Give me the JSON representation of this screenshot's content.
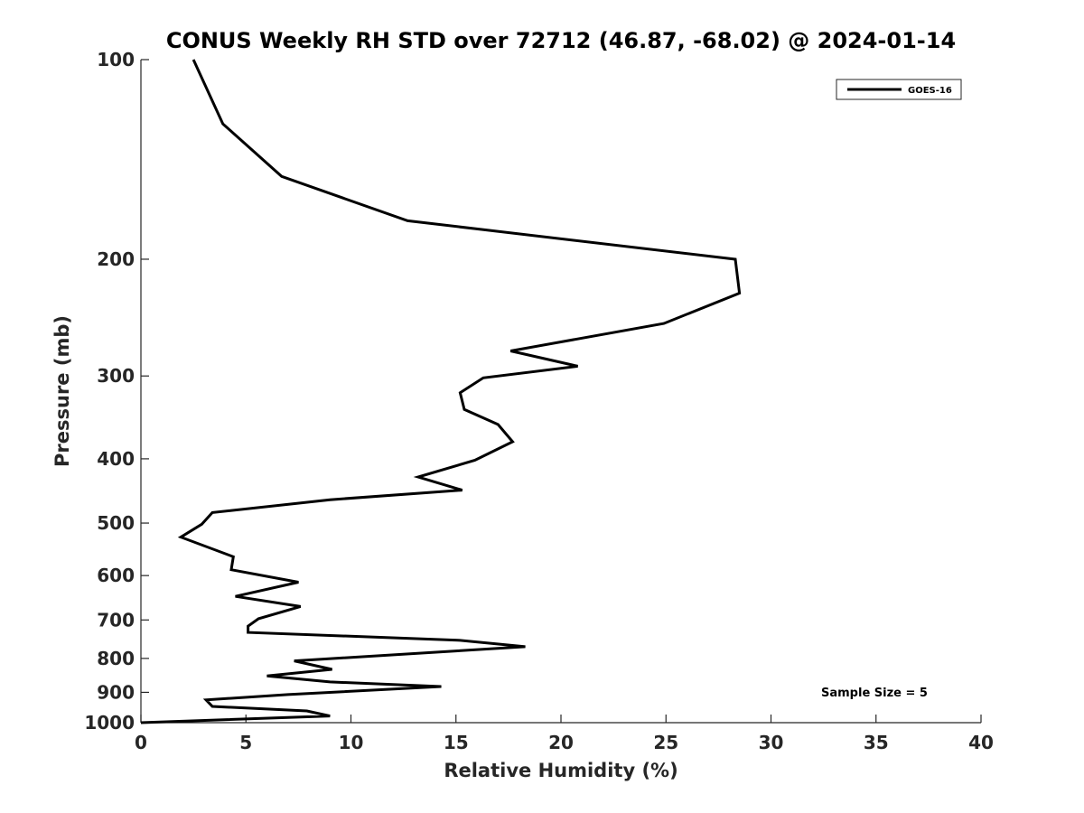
{
  "chart_data": {
    "type": "line",
    "title": "CONUS Weekly RH STD over 72712 (46.87, -68.02) @ 2024-01-14",
    "xlabel": "Relative Humidity (%)",
    "ylabel": "Pressure (mb)",
    "xlim": [
      0,
      40
    ],
    "ylim": [
      100,
      1000
    ],
    "y_scale": "log",
    "y_reversed": true,
    "x_ticks": [
      0,
      5,
      10,
      15,
      20,
      25,
      30,
      35,
      40
    ],
    "y_ticks": [
      100,
      200,
      300,
      400,
      500,
      600,
      700,
      800,
      900,
      1000
    ],
    "grid": false,
    "legend_position": "top-right",
    "annotation": "Sample Size = 5",
    "series": [
      {
        "name": "GOES-16",
        "color": "#000000",
        "points": [
          [
            2.5,
            100
          ],
          [
            3.9,
            125
          ],
          [
            6.7,
            150
          ],
          [
            12.7,
            175
          ],
          [
            28.3,
            200
          ],
          [
            28.5,
            225
          ],
          [
            24.9,
            250
          ],
          [
            17.6,
            275
          ],
          [
            20.8,
            290
          ],
          [
            16.3,
            302
          ],
          [
            15.2,
            318
          ],
          [
            15.4,
            337
          ],
          [
            17.0,
            355
          ],
          [
            17.7,
            377
          ],
          [
            15.9,
            402
          ],
          [
            13.2,
            426
          ],
          [
            15.3,
            446
          ],
          [
            9.0,
            461
          ],
          [
            3.4,
            482
          ],
          [
            2.9,
            502
          ],
          [
            1.9,
            525
          ],
          [
            4.4,
            562
          ],
          [
            4.3,
            588
          ],
          [
            7.5,
            614
          ],
          [
            4.5,
            645
          ],
          [
            7.6,
            668
          ],
          [
            5.6,
            697
          ],
          [
            5.1,
            715
          ],
          [
            5.1,
            731
          ],
          [
            15.1,
            751
          ],
          [
            18.3,
            768
          ],
          [
            7.3,
            807
          ],
          [
            9.1,
            831
          ],
          [
            6.0,
            850
          ],
          [
            9.0,
            868
          ],
          [
            14.3,
            882
          ],
          [
            7.0,
            907
          ],
          [
            3.1,
            924
          ],
          [
            3.4,
            945
          ],
          [
            7.9,
            960
          ],
          [
            9.0,
            977
          ],
          [
            0.0,
            1000
          ]
        ]
      }
    ]
  }
}
